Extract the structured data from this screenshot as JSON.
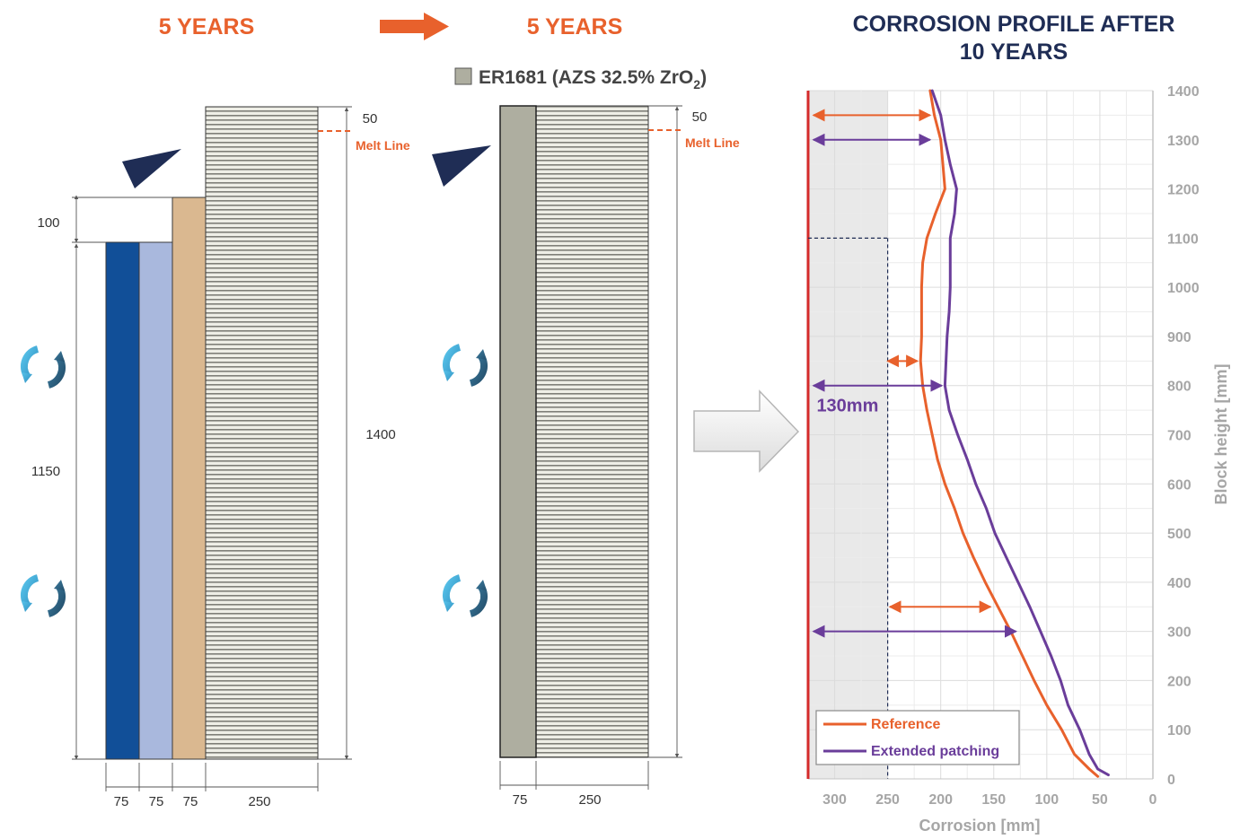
{
  "left_panel": {
    "title": "5 YEARS"
  },
  "middle_panel": {
    "title": "5 YEARS",
    "legend_label_prefix": "ER1681 (AZS 32.5% ZrO",
    "legend_label_sub": "2",
    "legend_label_suffix": ")",
    "legend_color": "#aeaea0"
  },
  "dimensions": {
    "left_top_gap": "50",
    "left_step": "100",
    "left_patch_height": "1150",
    "left_total_height": "1400",
    "left_widths": [
      "75",
      "75",
      "75",
      "250"
    ],
    "middle_top_gap": "50",
    "middle_widths": [
      "75",
      "250"
    ],
    "melt_line_left": "Melt Line",
    "melt_line_middle": "Melt Line"
  },
  "colors": {
    "dark_blue": "#114f98",
    "light_blue": "#a9b8dd",
    "tan": "#dab890",
    "orange": "#e8612c",
    "navy": "#1f2d55",
    "purple": "#6a3d9a",
    "red": "#d42a2a"
  },
  "icons": [
    "triangle-marker-icon",
    "rotation-arrows-icon",
    "right-arrow-icon",
    "large-arrow-icon"
  ],
  "chart_data": {
    "type": "line",
    "title_line1": "CORROSION PROFILE AFTER",
    "title_line2": "10 YEARS",
    "xlabel": "Corrosion [mm]",
    "ylabel": "Block height [mm]",
    "xlim": [
      325,
      0
    ],
    "ylim": [
      0,
      1400
    ],
    "x_reversed": true,
    "y_axis_side": "right",
    "grid": true,
    "x_ticks": [
      300,
      250,
      200,
      150,
      100,
      50,
      0
    ],
    "y_ticks": [
      0,
      100,
      200,
      300,
      400,
      500,
      600,
      700,
      800,
      900,
      1000,
      1100,
      1200,
      1300,
      1400
    ],
    "legend_position": "bottom-left",
    "series": [
      {
        "name": "Reference",
        "color": "#e8612c",
        "points": [
          [
            210,
            1400
          ],
          [
            206,
            1350
          ],
          [
            200,
            1300
          ],
          [
            198,
            1250
          ],
          [
            196,
            1200
          ],
          [
            205,
            1150
          ],
          [
            213,
            1100
          ],
          [
            217,
            1050
          ],
          [
            218,
            1000
          ],
          [
            218,
            950
          ],
          [
            218,
            900
          ],
          [
            219,
            850
          ],
          [
            217,
            800
          ],
          [
            213,
            750
          ],
          [
            208,
            700
          ],
          [
            203,
            650
          ],
          [
            196,
            600
          ],
          [
            187,
            550
          ],
          [
            179,
            500
          ],
          [
            169,
            450
          ],
          [
            158,
            400
          ],
          [
            146,
            350
          ],
          [
            134,
            300
          ],
          [
            123,
            250
          ],
          [
            112,
            200
          ],
          [
            100,
            150
          ],
          [
            86,
            100
          ],
          [
            74,
            50
          ],
          [
            60,
            20
          ],
          [
            52,
            5
          ]
        ]
      },
      {
        "name": "Extended patching",
        "color": "#6a3d9a",
        "points": [
          [
            208,
            1400
          ],
          [
            200,
            1350
          ],
          [
            196,
            1300
          ],
          [
            191,
            1250
          ],
          [
            185,
            1200
          ],
          [
            187,
            1150
          ],
          [
            191,
            1100
          ],
          [
            191,
            1050
          ],
          [
            191,
            1000
          ],
          [
            192,
            950
          ],
          [
            194,
            900
          ],
          [
            195,
            850
          ],
          [
            196,
            800
          ],
          [
            192,
            750
          ],
          [
            184,
            700
          ],
          [
            175,
            650
          ],
          [
            167,
            600
          ],
          [
            157,
            550
          ],
          [
            149,
            500
          ],
          [
            138,
            450
          ],
          [
            127,
            400
          ],
          [
            116,
            350
          ],
          [
            106,
            300
          ],
          [
            96,
            250
          ],
          [
            87,
            200
          ],
          [
            80,
            150
          ],
          [
            69,
            100
          ],
          [
            60,
            50
          ],
          [
            52,
            20
          ],
          [
            42,
            8
          ]
        ]
      }
    ],
    "shaded_region": {
      "x_from": 325,
      "x_to": 250,
      "y_from": 0,
      "y_to": 1400
    },
    "dashed_box": {
      "x": 250,
      "y_top": 1100
    },
    "annotations": [
      {
        "text": "130mm",
        "x": 317,
        "y": 760
      }
    ],
    "arrows": [
      {
        "color": "orange",
        "x_from": 320,
        "x_to": 210,
        "y": 1350
      },
      {
        "color": "purple",
        "x_from": 320,
        "x_to": 210,
        "y": 1300
      },
      {
        "color": "orange",
        "x_from": 250,
        "x_to": 222,
        "y": 850
      },
      {
        "color": "purple",
        "x_from": 320,
        "x_to": 199,
        "y": 800
      },
      {
        "color": "orange",
        "x_from": 248,
        "x_to": 153,
        "y": 350
      },
      {
        "color": "purple",
        "x_from": 320,
        "x_to": 129,
        "y": 300
      }
    ]
  }
}
